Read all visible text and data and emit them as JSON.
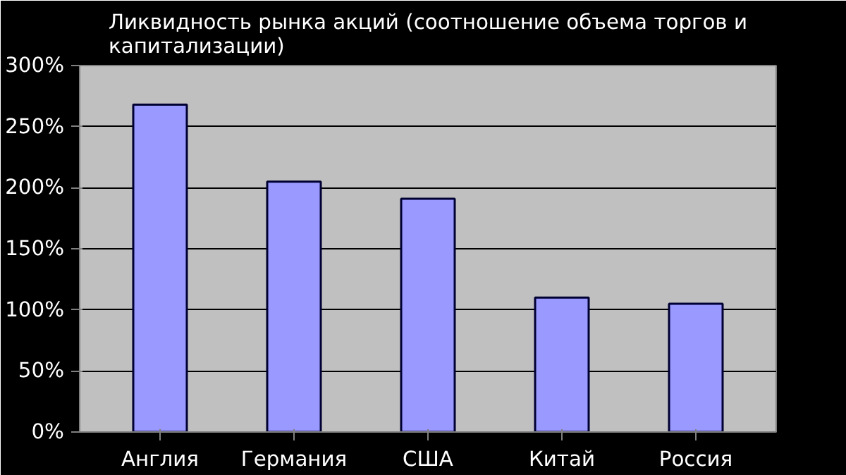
{
  "chart_data": {
    "type": "bar",
    "title": "Ликвидность рынка акций (соотношение объема торгов и капитализации)",
    "categories": [
      "Англия",
      "Германия",
      "США",
      "Китай",
      "Россия"
    ],
    "values": [
      268,
      205,
      191,
      110,
      105
    ],
    "color": "#9999ff",
    "ylim": [
      0,
      300
    ],
    "yticks": [
      {
        "value": 0,
        "label": "0%"
      },
      {
        "value": 50,
        "label": "50%"
      },
      {
        "value": 100,
        "label": "100%"
      },
      {
        "value": 150,
        "label": "150%"
      },
      {
        "value": 200,
        "label": "200%"
      },
      {
        "value": 250,
        "label": "250%"
      },
      {
        "value": 300,
        "label": "300%"
      }
    ],
    "grid": "y"
  }
}
